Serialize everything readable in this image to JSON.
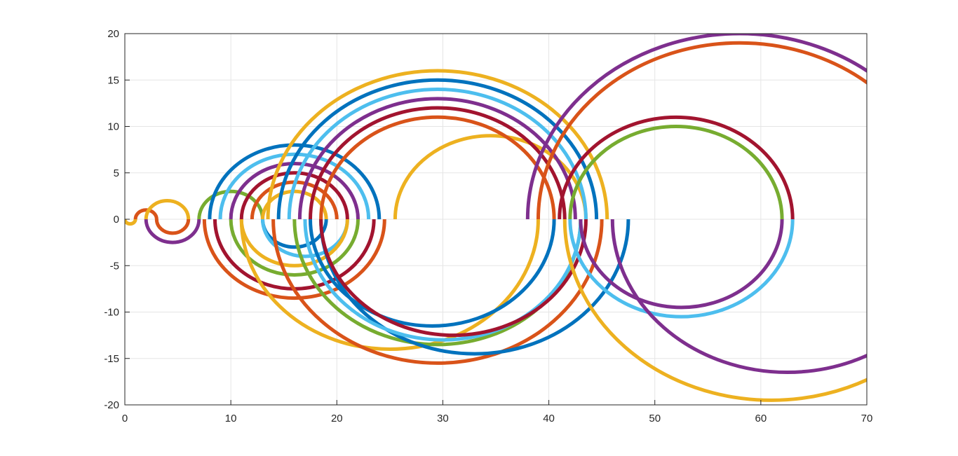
{
  "chart_data": {
    "type": "line",
    "title": "",
    "xlabel": "",
    "ylabel": "",
    "xlim": [
      0,
      70
    ],
    "ylim": [
      -20,
      20
    ],
    "x_ticks": [
      "0",
      "10",
      "20",
      "30",
      "40",
      "50",
      "60",
      "70"
    ],
    "y_ticks": [
      "20",
      "15",
      "10",
      "5",
      "0",
      "-5",
      "-10",
      "-15",
      "-20"
    ],
    "x_tick_values": [
      0,
      10,
      20,
      30,
      40,
      50,
      60,
      70
    ],
    "y_tick_values": [
      20,
      15,
      10,
      5,
      0,
      -5,
      -10,
      -15,
      -20
    ],
    "grid": true,
    "box": true,
    "color_order": [
      "#0072BD",
      "#D95319",
      "#EDB120",
      "#7E2F8E",
      "#77AC30",
      "#4DBEEE",
      "#A2142F"
    ],
    "series": [
      {
        "color": "#EDB120",
        "arcs": [
          {
            "cx": 0.5,
            "r": 0.5,
            "side": "lower"
          }
        ]
      },
      {
        "color": "#D95319",
        "arcs": [
          {
            "cx": 2.0,
            "r": 1.0,
            "side": "upper"
          }
        ]
      },
      {
        "color": "#EDB120",
        "arcs": [
          {
            "cx": 4.0,
            "r": 2.0,
            "side": "upper"
          }
        ]
      },
      {
        "color": "#D95319",
        "arcs": [
          {
            "cx": 4.5,
            "r": 1.5,
            "side": "lower"
          }
        ]
      },
      {
        "color": "#7E2F8E",
        "arcs": [
          {
            "cx": 4.5,
            "r": 2.5,
            "side": "lower"
          }
        ]
      },
      {
        "color": "#77AC30",
        "arcs": [
          {
            "cx": 10.0,
            "r": 3.0,
            "side": "upper"
          }
        ]
      },
      {
        "color": "#0072BD",
        "arcs": [
          {
            "cx": 16.0,
            "r": 8.0,
            "side": "upper"
          },
          {
            "cx": 16.0,
            "r": 3.0,
            "side": "lower"
          }
        ]
      },
      {
        "color": "#4DBEEE",
        "arcs": [
          {
            "cx": 16.0,
            "r": 7.0,
            "side": "upper"
          },
          {
            "cx": 17.0,
            "r": 4.0,
            "side": "lower"
          }
        ]
      },
      {
        "color": "#7E2F8E",
        "arcs": [
          {
            "cx": 16.0,
            "r": 6.0,
            "side": "upper"
          }
        ]
      },
      {
        "color": "#A2142F",
        "arcs": [
          {
            "cx": 16.0,
            "r": 5.0,
            "side": "upper"
          },
          {
            "cx": 16.0,
            "r": 7.5,
            "side": "lower"
          }
        ]
      },
      {
        "color": "#D95319",
        "arcs": [
          {
            "cx": 16.0,
            "r": 4.0,
            "side": "upper"
          },
          {
            "cx": 16.0,
            "r": 8.5,
            "side": "lower"
          }
        ]
      },
      {
        "color": "#EDB120",
        "arcs": [
          {
            "cx": 16.0,
            "r": 3.0,
            "side": "upper"
          },
          {
            "cx": 16.0,
            "r": 5.0,
            "side": "lower"
          }
        ]
      },
      {
        "color": "#77AC30",
        "arcs": [
          {
            "cx": 16.0,
            "r": 6.0,
            "side": "lower"
          }
        ]
      },
      {
        "color": "#EDB120",
        "arcs": [
          {
            "cx": 29.5,
            "r": 16.0,
            "side": "upper"
          },
          {
            "cx": 25.0,
            "r": 14.0,
            "side": "lower"
          },
          {
            "cx": 34.5,
            "r": 9.0,
            "side": "upper"
          }
        ]
      },
      {
        "color": "#0072BD",
        "arcs": [
          {
            "cx": 29.5,
            "r": 15.0,
            "side": "upper"
          },
          {
            "cx": 29.0,
            "r": 11.5,
            "side": "lower"
          }
        ]
      },
      {
        "color": "#4DBEEE",
        "arcs": [
          {
            "cx": 29.5,
            "r": 14.0,
            "side": "upper"
          }
        ]
      },
      {
        "color": "#7E2F8E",
        "arcs": [
          {
            "cx": 29.5,
            "r": 13.0,
            "side": "upper"
          }
        ]
      },
      {
        "color": "#A2142F",
        "arcs": [
          {
            "cx": 29.5,
            "r": 12.0,
            "side": "upper"
          }
        ]
      },
      {
        "color": "#D95319",
        "arcs": [
          {
            "cx": 29.5,
            "r": 11.0,
            "side": "upper"
          },
          {
            "cx": 29.5,
            "r": 15.5,
            "side": "lower"
          }
        ]
      },
      {
        "color": "#77AC30",
        "arcs": [
          {
            "cx": 29.5,
            "r": 13.5,
            "side": "lower"
          }
        ]
      },
      {
        "color": "#0072BD",
        "arcs": [
          {
            "cx": 33.0,
            "r": 14.5,
            "side": "lower"
          }
        ]
      },
      {
        "color": "#4DBEEE",
        "arcs": [
          {
            "cx": 30.0,
            "r": 13.0,
            "side": "lower"
          }
        ]
      },
      {
        "color": "#A2142F",
        "arcs": [
          {
            "cx": 31.0,
            "r": 12.5,
            "side": "lower"
          }
        ]
      },
      {
        "color": "#A2142F",
        "arcs": [
          {
            "cx": 52.0,
            "r": 11.0,
            "side": "upper"
          }
        ]
      },
      {
        "color": "#77AC30",
        "arcs": [
          {
            "cx": 52.0,
            "r": 10.0,
            "side": "upper"
          }
        ]
      },
      {
        "color": "#4DBEEE",
        "arcs": [
          {
            "cx": 52.5,
            "r": 10.5,
            "side": "lower"
          }
        ]
      },
      {
        "color": "#7E2F8E",
        "arcs": [
          {
            "cx": 52.5,
            "r": 9.5,
            "side": "lower"
          },
          {
            "cx": 58.0,
            "r": 20.0,
            "side": "upper"
          }
        ]
      },
      {
        "color": "#D95319",
        "arcs": [
          {
            "cx": 58.0,
            "r": 19.0,
            "side": "upper"
          }
        ]
      },
      {
        "color": "#7E2F8E",
        "arcs": [
          {
            "cx": 62.5,
            "r": 16.5,
            "side": "lower"
          }
        ]
      },
      {
        "color": "#EDB120",
        "arcs": [
          {
            "cx": 61.0,
            "r": 19.5,
            "side": "lower"
          }
        ]
      }
    ]
  }
}
